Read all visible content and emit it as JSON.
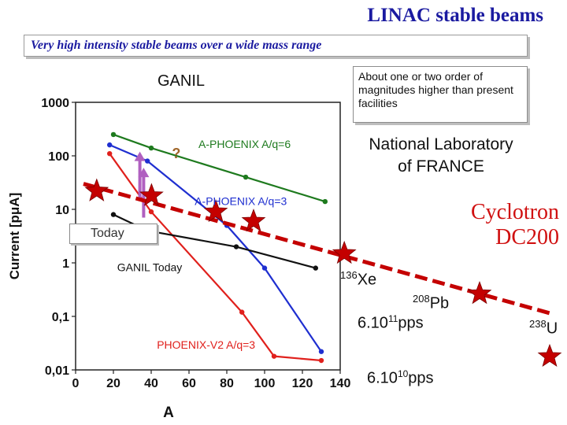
{
  "slide": {
    "title": "LINAC stable beams",
    "subtitle": "Very high intensity stable beams over a wide mass range",
    "ganil_label": "GANIL",
    "about_text": "About one or two order of magnitudes higher than present facilities",
    "national_lab": [
      "National Laboratory",
      "of FRANCE"
    ],
    "cyclotron": [
      "Cyclotron",
      "DC200"
    ],
    "today_label": "Today",
    "question_mark": "?",
    "ions": [
      {
        "mass": "136",
        "symbol": "Xe"
      },
      {
        "mass": "208",
        "symbol": "Pb"
      },
      {
        "mass": "238",
        "symbol": "U"
      }
    ],
    "rates": [
      {
        "mantissa": "6.10",
        "exp": "11",
        "unit": "pps"
      },
      {
        "mantissa": "6.10",
        "exp": "10",
        "unit": "pps"
      }
    ]
  },
  "colors": {
    "title": "#1a1aa0",
    "red": "#e0201c",
    "blue": "#1f2fd0",
    "green": "#1e7a1e",
    "black": "#111111",
    "star": "#c40000",
    "arrow": "#b060c0",
    "cyclotron": "#d01010"
  },
  "chart_data": {
    "type": "line",
    "xlabel": "A",
    "ylabel": "Current [pμA]",
    "xlim": [
      0,
      140
    ],
    "ylim": [
      0.01,
      1000
    ],
    "yscale": "log",
    "x_ticks": [
      0,
      20,
      40,
      60,
      80,
      100,
      120,
      140
    ],
    "y_ticks": [
      {
        "value": 0.01,
        "label": "0,01"
      },
      {
        "value": 0.1,
        "label": "0,1"
      },
      {
        "value": 1,
        "label": "1"
      },
      {
        "value": 10,
        "label": "10"
      },
      {
        "value": 100,
        "label": "100"
      },
      {
        "value": 1000,
        "label": "1000"
      }
    ],
    "series": [
      {
        "name": "A-PHOENIX A/q=6",
        "color_key": "green",
        "x": [
          20,
          40,
          90,
          132
        ],
        "y": [
          250,
          140,
          40,
          14
        ]
      },
      {
        "name": "A-PHOENIX A/q=3",
        "color_key": "blue",
        "x": [
          18,
          38,
          80,
          100,
          130
        ],
        "y": [
          160,
          80,
          5,
          0.8,
          0.022
        ]
      },
      {
        "name": "PHOENIX-V2 A/q=3",
        "color_key": "red",
        "x": [
          18,
          40,
          88,
          105,
          130
        ],
        "y": [
          110,
          9,
          0.12,
          0.018,
          0.015
        ]
      },
      {
        "name": "GANIL Today",
        "color_key": "black",
        "x": [
          20,
          38,
          85,
          127
        ],
        "y": [
          8,
          4,
          2,
          0.8
        ]
      }
    ],
    "series_labels": [
      {
        "text": "A-PHOENIX   A/q=6",
        "x": 65,
        "y": 140,
        "color_key": "green"
      },
      {
        "text": "A-PHOENIX  A/q=3",
        "x": 63,
        "y": 12,
        "color_key": "blue"
      },
      {
        "text": "GANIL Today",
        "x": 22,
        "y": 0.7,
        "color_key": "black"
      },
      {
        "text": "PHOENIX-V2  A/q=3",
        "x": 43,
        "y": 0.025,
        "color_key": "red"
      }
    ],
    "arrows": [
      {
        "x": 34,
        "from": 15,
        "to": 120
      },
      {
        "x": 36,
        "from": 7,
        "to": 60
      }
    ],
    "stars": [
      {
        "x": 7,
        "y": 22
      },
      {
        "x": 36,
        "y": 18
      },
      {
        "x": 70,
        "y": 9
      },
      {
        "x": 90,
        "y": 6
      },
      {
        "x": 138,
        "y": 1.5
      }
    ],
    "trend_line": [
      {
        "x": 0,
        "y": 30
      },
      {
        "x": 140,
        "y": 1.4
      }
    ]
  }
}
